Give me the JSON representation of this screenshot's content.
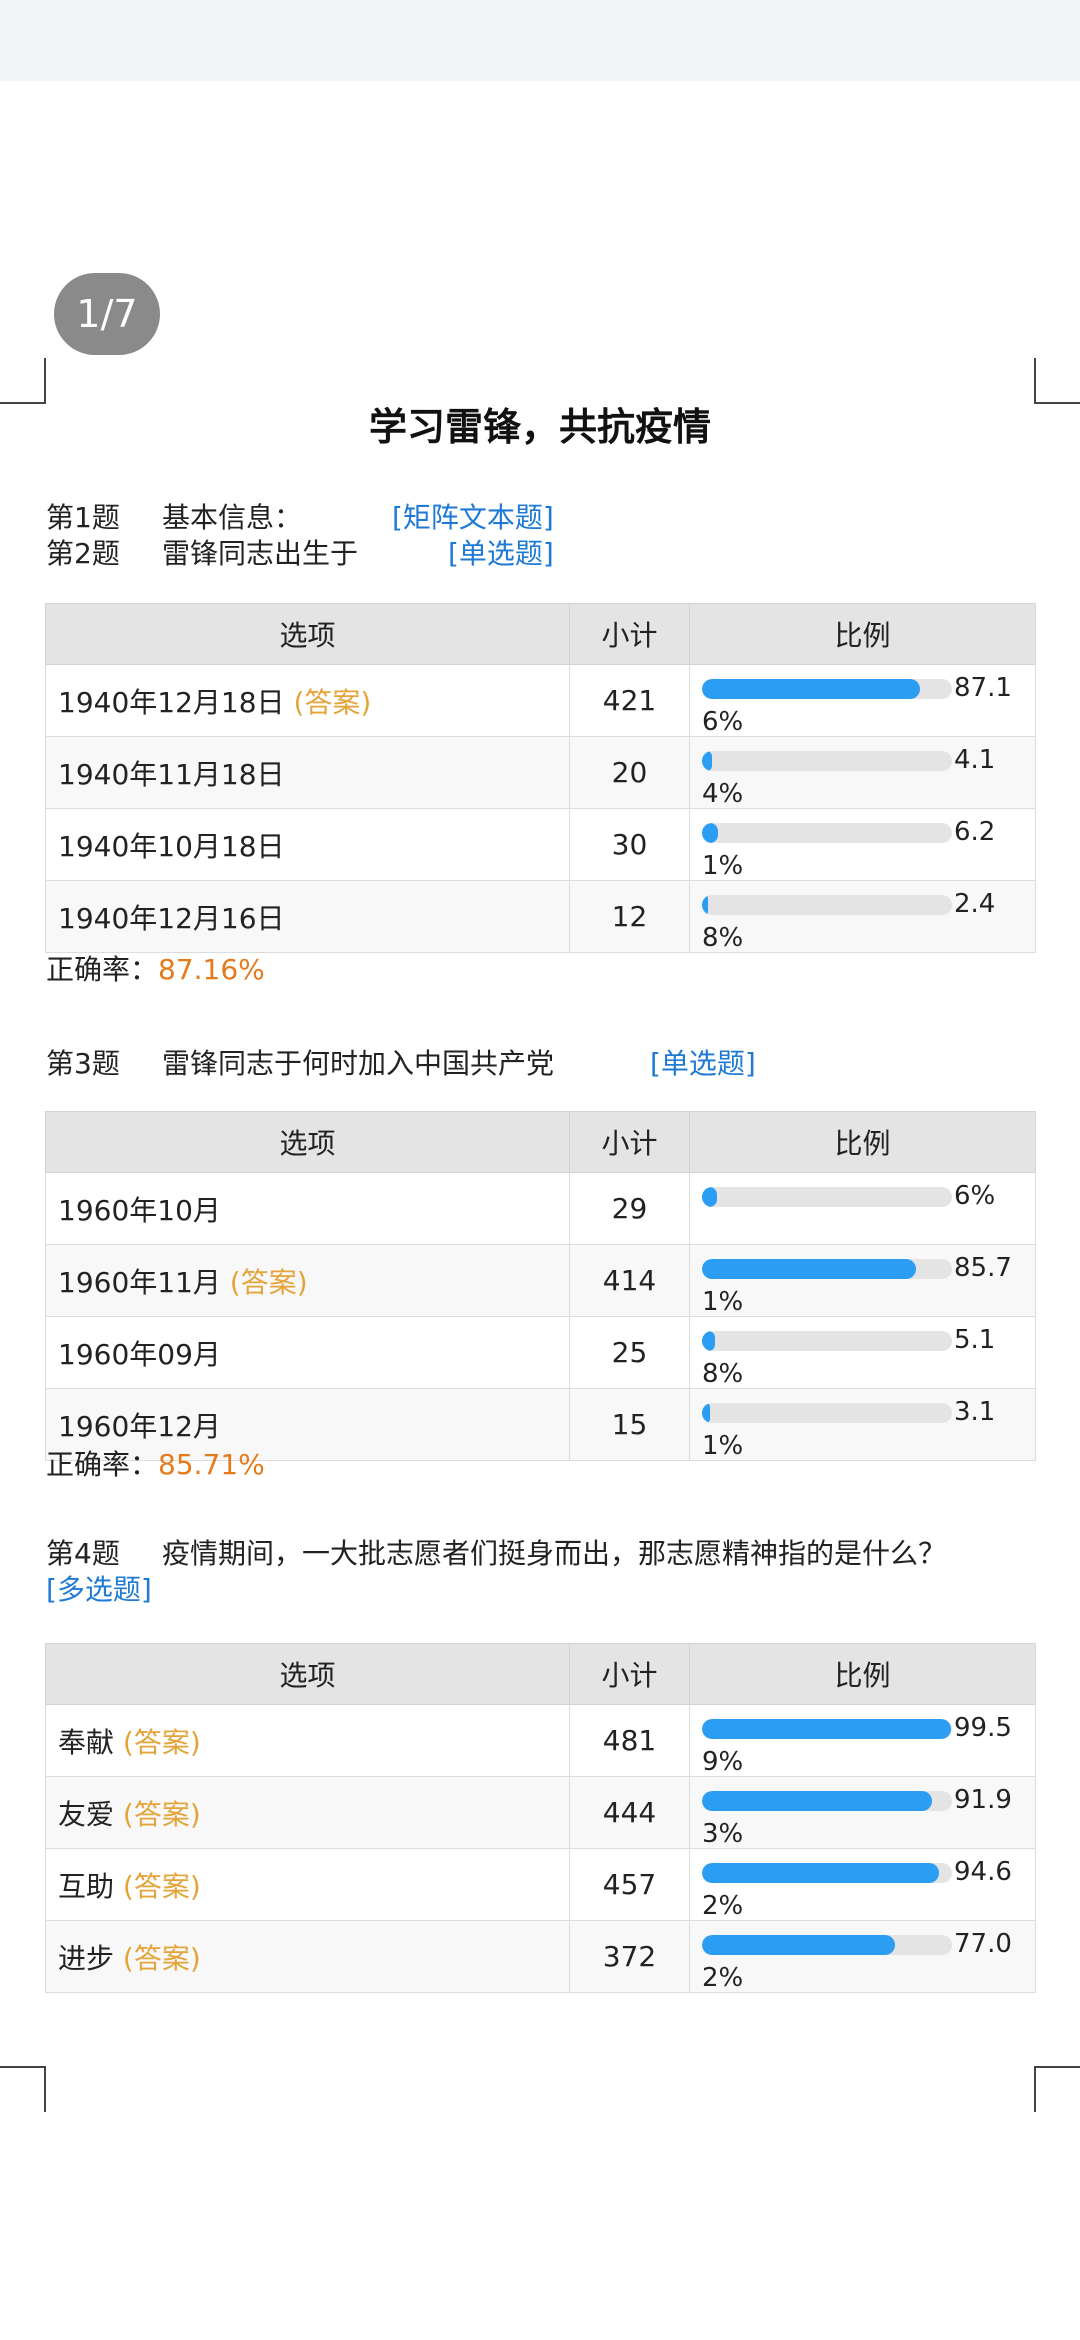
{
  "page_indicator": "1/7",
  "title": "学习雷锋，共抗疫情",
  "questions": [
    {
      "num": "第1题",
      "text": "基本信息：",
      "type": "[矩阵文本题]"
    },
    {
      "num": "第2题",
      "text": "雷锋同志出生于",
      "type": "[单选题]"
    },
    {
      "num": "第3题",
      "text": "雷锋同志于何时加入中国共产党",
      "type": "[单选题]"
    },
    {
      "num": "第4题",
      "text": "疫情期间，一大批志愿者们挺身而出，那志愿精神指的是什么？",
      "type": "[多选题]"
    }
  ],
  "table_headers": {
    "option": "选项",
    "count": "小计",
    "ratio": "比例"
  },
  "answer_tag": "(答案)",
  "rate_label": "正确率：",
  "tables": [
    {
      "rows": [
        {
          "option": "1940年12月18日",
          "is_answer": true,
          "count": "421",
          "percent": "87.16%",
          "value": 87.16
        },
        {
          "option": "1940年11月18日",
          "is_answer": false,
          "count": "20",
          "percent": "4.14%",
          "value": 4.14
        },
        {
          "option": "1940年10月18日",
          "is_answer": false,
          "count": "30",
          "percent": "6.21%",
          "value": 6.21
        },
        {
          "option": "1940年12月16日",
          "is_answer": false,
          "count": "12",
          "percent": "2.48%",
          "value": 2.48
        }
      ],
      "correct_rate": "87.16%"
    },
    {
      "rows": [
        {
          "option": "1960年10月",
          "is_answer": false,
          "count": "29",
          "percent": "6%",
          "value": 6
        },
        {
          "option": "1960年11月",
          "is_answer": true,
          "count": "414",
          "percent": "85.71%",
          "value": 85.71
        },
        {
          "option": "1960年09月",
          "is_answer": false,
          "count": "25",
          "percent": "5.18%",
          "value": 5.18
        },
        {
          "option": "1960年12月",
          "is_answer": false,
          "count": "15",
          "percent": "3.11%",
          "value": 3.11
        }
      ],
      "correct_rate": "85.71%"
    },
    {
      "rows": [
        {
          "option": "奉献",
          "is_answer": true,
          "count": "481",
          "percent": "99.59%",
          "value": 99.59
        },
        {
          "option": "友爱",
          "is_answer": true,
          "count": "444",
          "percent": "91.93%",
          "value": 91.93
        },
        {
          "option": "互助",
          "is_answer": true,
          "count": "457",
          "percent": "94.62%",
          "value": 94.62
        },
        {
          "option": "进步",
          "is_answer": true,
          "count": "372",
          "percent": "77.02%",
          "value": 77.02
        }
      ],
      "correct_rate": null
    }
  ],
  "colors": {
    "bar": "#2b9df2",
    "track": "#e4e4e4",
    "type_link": "#1e7ad4",
    "answer": "#e4a43a",
    "rate": "#e57b1c"
  }
}
